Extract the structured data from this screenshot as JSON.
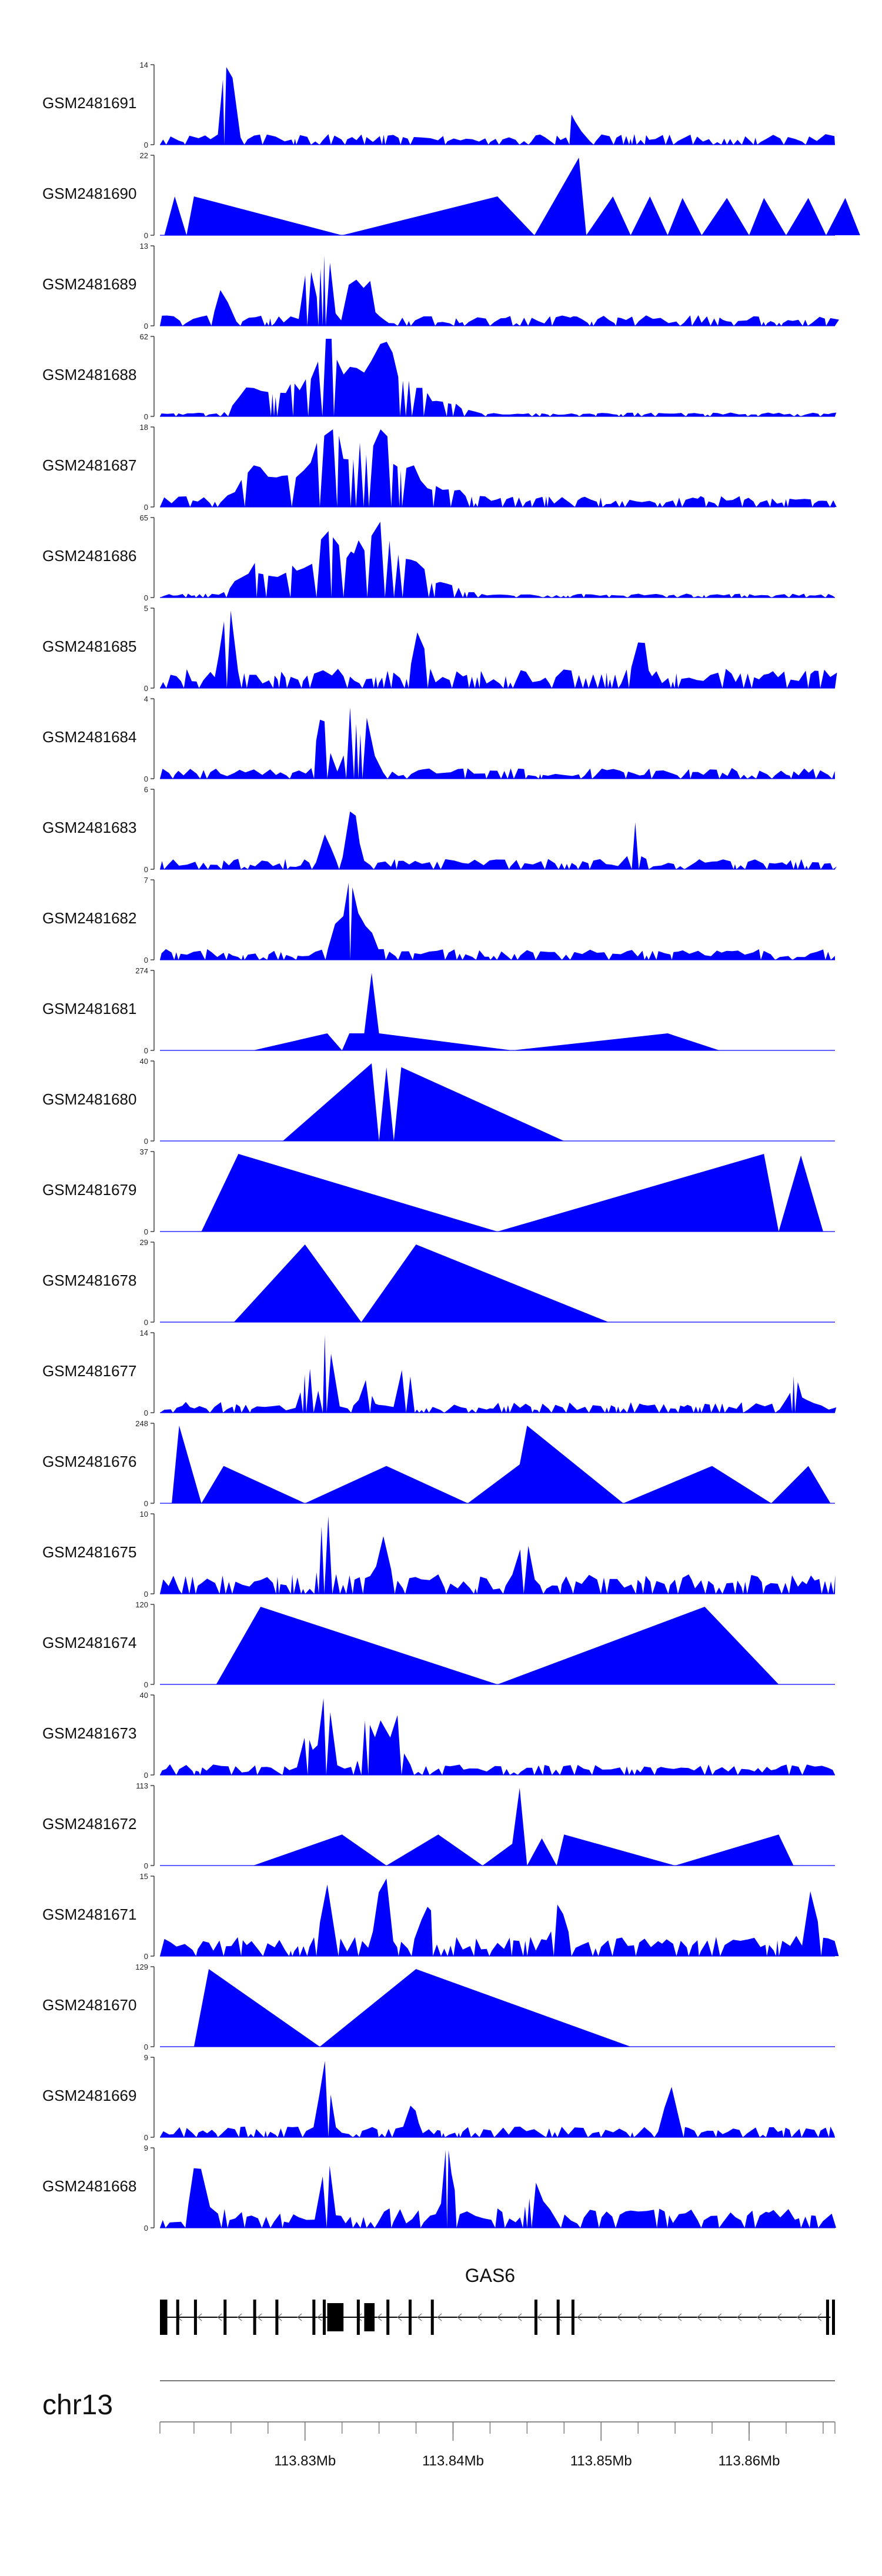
{
  "chart_data": {
    "type": "area",
    "tracks": [
      {
        "name": "GSM2481691",
        "ymax": "14",
        "ymin": "0",
        "profile": "noisy",
        "seed": 1,
        "peaks": [
          [
            113.8246,
            1.0
          ],
          [
            113.848,
            0.3
          ]
        ]
      },
      {
        "name": "GSM2481690",
        "ymax": "22",
        "ymin": "0",
        "profile": "sparse",
        "points": [
          [
            113.8205,
            0
          ],
          [
            113.8212,
            0.5
          ],
          [
            113.822,
            0
          ],
          [
            113.8225,
            0.5
          ],
          [
            113.8325,
            0
          ],
          [
            113.843,
            0.5
          ],
          [
            113.8455,
            0
          ],
          [
            113.8485,
            1.0
          ],
          [
            113.849,
            0
          ],
          [
            113.8508,
            0.5
          ],
          [
            113.852,
            0
          ],
          [
            113.8533,
            0.5
          ],
          [
            113.8545,
            0
          ],
          [
            113.8555,
            0.48
          ],
          [
            113.8568,
            0
          ],
          [
            113.8585,
            0.48
          ],
          [
            113.86,
            0
          ],
          [
            113.861,
            0.48
          ],
          [
            113.8625,
            0
          ],
          [
            113.864,
            0.48
          ],
          [
            113.8652,
            0
          ],
          [
            113.8665,
            0.48
          ],
          [
            113.8675,
            0
          ]
        ]
      },
      {
        "name": "GSM2481689",
        "ymax": "13",
        "ymin": "0",
        "profile": "noisy",
        "seed": 3,
        "peaks": [
          [
            113.8312,
            1.0
          ],
          [
            113.83,
            0.7
          ],
          [
            113.833,
            0.7
          ],
          [
            113.834,
            0.55
          ],
          [
            113.8242,
            0.4
          ]
        ]
      },
      {
        "name": "GSM2481688",
        "ymax": "62",
        "ymin": "0",
        "profile": "dual",
        "seed": 4
      },
      {
        "name": "GSM2481687",
        "ymax": "18",
        "ymin": "0",
        "profile": "dual-noisy",
        "seed": 5
      },
      {
        "name": "GSM2481686",
        "ymax": "65",
        "ymin": "0",
        "profile": "dual",
        "seed": 6
      },
      {
        "name": "GSM2481685",
        "ymax": "5",
        "ymin": "0",
        "profile": "noisy-tall",
        "seed": 7,
        "peaks": [
          [
            113.8245,
            0.95
          ],
          [
            113.8525,
            0.75
          ],
          [
            113.8375,
            0.7
          ]
        ]
      },
      {
        "name": "GSM2481684",
        "ymax": "4",
        "ymin": "0",
        "profile": "noisy",
        "seed": 8,
        "peaks": [
          [
            113.833,
            1.0
          ],
          [
            113.831,
            0.8
          ],
          [
            113.834,
            0.7
          ]
        ]
      },
      {
        "name": "GSM2481683",
        "ymax": "6",
        "ymin": "0",
        "profile": "noisy",
        "seed": 9,
        "peaks": [
          [
            113.833,
            1.0
          ],
          [
            113.8312,
            0.45
          ],
          [
            113.852,
            0.55
          ]
        ]
      },
      {
        "name": "GSM2481682",
        "ymax": "7",
        "ymin": "0",
        "profile": "noisy",
        "seed": 10,
        "peaks": [
          [
            113.833,
            1.0
          ],
          [
            113.832,
            0.6
          ],
          [
            113.834,
            0.45
          ]
        ]
      },
      {
        "name": "GSM2481681",
        "ymax": "274",
        "ymin": "0",
        "profile": "sparse",
        "points": [
          [
            113.8265,
            0
          ],
          [
            113.8315,
            0.22
          ],
          [
            113.8325,
            0
          ],
          [
            113.833,
            0.22
          ],
          [
            113.834,
            0.22
          ],
          [
            113.8345,
            1.0
          ],
          [
            113.835,
            0.22
          ],
          [
            113.844,
            0
          ],
          [
            113.8545,
            0.22
          ],
          [
            113.858,
            0
          ]
        ]
      },
      {
        "name": "GSM2481680",
        "ymax": "40",
        "ymin": "0",
        "profile": "sparse",
        "points": [
          [
            113.8285,
            0
          ],
          [
            113.8345,
            1.0
          ],
          [
            113.835,
            0
          ],
          [
            113.8355,
            0.95
          ],
          [
            113.836,
            0
          ],
          [
            113.8365,
            0.95
          ],
          [
            113.8475,
            0
          ]
        ]
      },
      {
        "name": "GSM2481679",
        "ymax": "37",
        "ymin": "0",
        "profile": "sparse",
        "points": [
          [
            113.823,
            0
          ],
          [
            113.8255,
            1.0
          ],
          [
            113.843,
            0
          ],
          [
            113.861,
            1.0
          ],
          [
            113.862,
            0
          ],
          [
            113.8635,
            0.98
          ],
          [
            113.865,
            0
          ]
        ]
      },
      {
        "name": "GSM2481678",
        "ymax": "29",
        "ymin": "0",
        "profile": "sparse",
        "points": [
          [
            113.8252,
            0
          ],
          [
            113.83,
            1.0
          ],
          [
            113.8338,
            0
          ],
          [
            113.8375,
            1.0
          ],
          [
            113.8505,
            0
          ]
        ]
      },
      {
        "name": "GSM2481677",
        "ymax": "14",
        "ymin": "0",
        "profile": "noisy",
        "seed": 17,
        "peaks": [
          [
            113.8312,
            1.0
          ],
          [
            113.83,
            0.5
          ],
          [
            113.8365,
            0.65
          ],
          [
            113.834,
            0.4
          ],
          [
            113.863,
            0.42
          ]
        ]
      },
      {
        "name": "GSM2481676",
        "ymax": "248",
        "ymin": "0",
        "profile": "sparse",
        "points": [
          [
            113.821,
            0
          ],
          [
            113.8215,
            1.0
          ],
          [
            113.823,
            0
          ],
          [
            113.8245,
            0.48
          ],
          [
            113.83,
            0
          ],
          [
            113.8355,
            0.48
          ],
          [
            113.841,
            0
          ],
          [
            113.8445,
            0.5
          ],
          [
            113.845,
            1.0
          ],
          [
            113.8515,
            0
          ],
          [
            113.8575,
            0.48
          ],
          [
            113.8615,
            0
          ],
          [
            113.864,
            0.48
          ],
          [
            113.8655,
            0
          ]
        ]
      },
      {
        "name": "GSM2481675",
        "ymax": "10",
        "ymin": "0",
        "profile": "noisy-tall",
        "seed": 19,
        "peaks": [
          [
            113.8312,
            1.0
          ],
          [
            113.835,
            0.6
          ],
          [
            113.8445,
            0.6
          ]
        ]
      },
      {
        "name": "GSM2481674",
        "ymax": "120",
        "ymin": "0",
        "profile": "sparse",
        "points": [
          [
            113.824,
            0
          ],
          [
            113.827,
            1.0
          ],
          [
            113.843,
            0
          ],
          [
            113.857,
            1.0
          ],
          [
            113.862,
            0
          ]
        ]
      },
      {
        "name": "GSM2481673",
        "ymax": "40",
        "ymin": "0",
        "profile": "noisy",
        "seed": 21,
        "peaks": [
          [
            113.8312,
            1.0
          ],
          [
            113.834,
            0.8
          ],
          [
            113.836,
            0.78
          ],
          [
            113.835,
            0.6
          ],
          [
            113.83,
            0.5
          ]
        ]
      },
      {
        "name": "GSM2481672",
        "ymax": "113",
        "ymin": "0",
        "profile": "sparse",
        "points": [
          [
            113.8265,
            0
          ],
          [
            113.8325,
            0.4
          ],
          [
            113.8355,
            0
          ],
          [
            113.839,
            0.4
          ],
          [
            113.842,
            0
          ],
          [
            113.844,
            0.28
          ],
          [
            113.8445,
            1.0
          ],
          [
            113.845,
            0
          ],
          [
            113.846,
            0.35
          ],
          [
            113.847,
            0
          ],
          [
            113.8475,
            0.4
          ],
          [
            113.855,
            0
          ],
          [
            113.862,
            0.4
          ],
          [
            113.863,
            0
          ]
        ]
      },
      {
        "name": "GSM2481671",
        "ymax": "15",
        "ymin": "0",
        "profile": "noisy-tall",
        "seed": 23,
        "peaks": [
          [
            113.835,
            1.0
          ],
          [
            113.8312,
            0.78
          ],
          [
            113.864,
            0.78
          ],
          [
            113.838,
            0.7
          ],
          [
            113.847,
            0.7
          ]
        ]
      },
      {
        "name": "GSM2481670",
        "ymax": "129",
        "ymin": "0",
        "profile": "sparse",
        "points": [
          [
            113.8225,
            0
          ],
          [
            113.8235,
            1.0
          ],
          [
            113.831,
            0
          ],
          [
            113.8375,
            1.0
          ],
          [
            113.852,
            0
          ]
        ]
      },
      {
        "name": "GSM2481669",
        "ymax": "9",
        "ymin": "0",
        "profile": "noisy",
        "seed": 25,
        "peaks": [
          [
            113.8312,
            1.0
          ],
          [
            113.8545,
            0.65
          ],
          [
            113.837,
            0.4
          ]
        ]
      },
      {
        "name": "GSM2481668",
        "ymax": "9",
        "ymin": "0",
        "profile": "noisy-tall",
        "seed": 26,
        "peaks": [
          [
            113.8395,
            1.0
          ],
          [
            113.8312,
            0.85
          ],
          [
            113.8225,
            0.8
          ],
          [
            113.8455,
            0.65
          ]
        ]
      }
    ],
    "gene": {
      "name": "GAS6",
      "strand": "-",
      "start": 113.8202,
      "end": 113.8655,
      "exons": [
        [
          113.8202,
          113.8207,
          "t"
        ],
        [
          113.8213,
          113.8215,
          "t"
        ],
        [
          113.8225,
          113.8227,
          "t"
        ],
        [
          113.8245,
          113.8247,
          "t"
        ],
        [
          113.8265,
          113.8267,
          "t"
        ],
        [
          113.828,
          113.8282,
          "t"
        ],
        [
          113.8305,
          113.8307,
          "t"
        ],
        [
          113.8312,
          113.8314,
          "t"
        ],
        [
          113.8315,
          113.8326,
          "T"
        ],
        [
          113.8335,
          113.8337,
          "t"
        ],
        [
          113.834,
          113.8347,
          "T"
        ],
        [
          113.8355,
          113.8357,
          "t"
        ],
        [
          113.837,
          113.8372,
          "t"
        ],
        [
          113.8385,
          113.8387,
          "t"
        ],
        [
          113.8455,
          113.8457,
          "t"
        ],
        [
          113.847,
          113.8472,
          "t"
        ],
        [
          113.848,
          113.8482,
          "t"
        ],
        [
          113.8652,
          113.8654,
          "t"
        ],
        [
          113.8656,
          113.8658,
          "t"
        ]
      ]
    },
    "axis": {
      "chromosome": "chr13",
      "xlim": [
        113.8202,
        113.8658
      ],
      "minor_step": 0.0025,
      "major_ticks": [
        113.83,
        113.84,
        113.85,
        113.86
      ],
      "major_labels": [
        "113.83Mb",
        "113.84Mb",
        "113.85Mb",
        "113.86Mb"
      ]
    },
    "fill_color": "#0000ff",
    "xlabel": "",
    "ylabel": ""
  }
}
